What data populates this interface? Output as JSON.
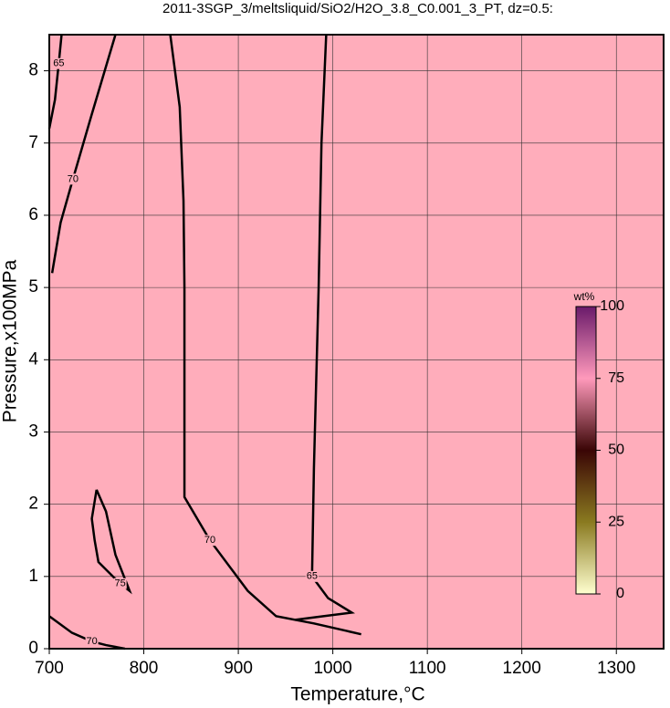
{
  "chart_data": {
    "type": "contour",
    "title": "2011-3SGP_3/meltsliquid/SiO2/H2O_3.8_C0.001_3_PT, dz=0.5:",
    "x_label": "Temperature,°C",
    "y_label": "Pressure,x100MPa",
    "xlim": [
      700,
      1350
    ],
    "ylim": [
      0,
      8.5
    ],
    "xticks": [
      700,
      800,
      900,
      1000,
      1100,
      1200,
      1300
    ],
    "yticks": [
      0,
      1,
      2,
      3,
      4,
      5,
      6,
      7,
      8
    ],
    "grid": true,
    "background": "#ffadbb",
    "line_color": "#000000",
    "contours": [
      {
        "level": 70,
        "x": [
          703,
          712,
          725,
          745,
          770
        ],
        "y": [
          5.2,
          5.9,
          6.5,
          7.4,
          8.5
        ]
      },
      {
        "level": 65,
        "x": [
          700,
          706,
          710,
          713
        ],
        "y": [
          7.2,
          7.6,
          8.1,
          8.5
        ]
      },
      {
        "level": 70,
        "x": [
          828,
          838,
          842,
          843,
          843,
          870,
          910,
          940,
          980,
          1030
        ],
        "y": [
          8.5,
          7.5,
          6.2,
          5.0,
          2.1,
          1.5,
          0.8,
          0.45,
          0.35,
          0.2
        ]
      },
      {
        "level": 65,
        "x": [
          993,
          988,
          985,
          980,
          978,
          995,
          1020,
          990,
          960
        ],
        "y": [
          8.5,
          7.0,
          5.0,
          2.5,
          1.0,
          0.7,
          0.5,
          0.45,
          0.4
        ]
      },
      {
        "level": 75,
        "x": [
          750,
          745,
          748,
          752,
          775,
          785,
          770,
          760,
          750
        ],
        "y": [
          2.2,
          1.8,
          1.5,
          1.2,
          0.9,
          0.8,
          1.3,
          1.9,
          2.2
        ]
      },
      {
        "level": 70,
        "x": [
          700,
          724,
          745,
          760,
          780
        ],
        "y": [
          0.45,
          0.22,
          0.1,
          0.05,
          0.0
        ]
      }
    ],
    "colorbar": {
      "label": "wt%",
      "lim": [
        0,
        100
      ],
      "ticks": [
        0,
        25,
        50,
        75,
        100
      ],
      "colors": [
        "#ffffd0",
        "#8a7a20",
        "#3a0505",
        "#ff99bb",
        "#6a1a6a"
      ]
    }
  }
}
